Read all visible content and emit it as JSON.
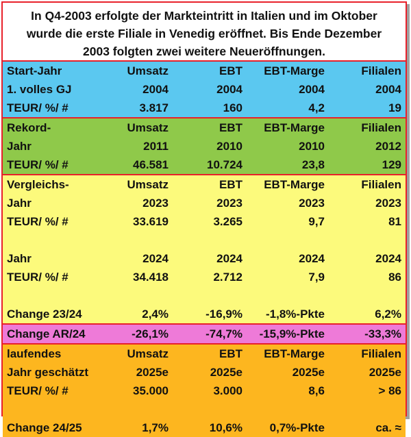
{
  "intro": {
    "line1": "In Q4-2003 erfolgte der Markteintritt in Italien und im Oktober",
    "line2": "wurde die erste Filiale in Venedig eröffnet. Bis Ende Dezember",
    "line3": "2003 folgten zwei weitere Neueröffnungen."
  },
  "colors": {
    "start": "#5bc8f0",
    "rekord": "#8fc94a",
    "vergleich": "#fcfa7c",
    "change_ar": "#ee7ad8",
    "laufend": "#fdb61f",
    "border": "#e8202a"
  },
  "sections": {
    "start": {
      "rows": [
        [
          "Start-Jahr",
          "Umsatz",
          "EBT",
          "EBT-Marge",
          "Filialen"
        ],
        [
          "1. volles GJ",
          "2004",
          "2004",
          "2004",
          "2004"
        ],
        [
          "TEUR/ %/ #",
          "3.817",
          "160",
          "4,2",
          "19"
        ]
      ]
    },
    "rekord": {
      "rows": [
        [
          "Rekord-",
          "Umsatz",
          "EBT",
          "EBT-Marge",
          "Filialen"
        ],
        [
          "Jahr",
          "2011",
          "2010",
          "2010",
          "2012"
        ],
        [
          "TEUR/ %/ #",
          "46.581",
          "10.724",
          "23,8",
          "129"
        ]
      ]
    },
    "vergleich": {
      "rows": [
        [
          "Vergleichs-",
          "Umsatz",
          "EBT",
          "EBT-Marge",
          "Filialen"
        ],
        [
          "Jahr",
          "2023",
          "2023",
          "2023",
          "2023"
        ],
        [
          "TEUR/ %/ #",
          "33.619",
          "3.265",
          "9,7",
          "81"
        ],
        [
          "Jahr",
          "2024",
          "2024",
          "2024",
          "2024"
        ],
        [
          "TEUR/ %/ #",
          "34.418",
          "2.712",
          "7,9",
          "86"
        ],
        [
          "Change 23/24",
          "2,4%",
          "-16,9%",
          "-1,8%-Pkte",
          "6,2%"
        ]
      ]
    },
    "change_ar": {
      "rows": [
        [
          "Change AR/24",
          "-26,1%",
          "-74,7%",
          "-15,9%-Pkte",
          "-33,3%"
        ]
      ]
    },
    "laufend": {
      "rows": [
        [
          "laufendes",
          "Umsatz",
          "EBT",
          "EBT-Marge",
          "Filialen"
        ],
        [
          "Jahr geschätzt",
          "2025e",
          "2025e",
          "2025e",
          "2025e"
        ],
        [
          "TEUR/ %/ #",
          "35.000",
          "3.000",
          "8,6",
          "> 86"
        ],
        [
          "Change 24/25",
          "1,7%",
          "10,6%",
          "0,7%-Pkte",
          "ca. ≈"
        ]
      ]
    }
  }
}
